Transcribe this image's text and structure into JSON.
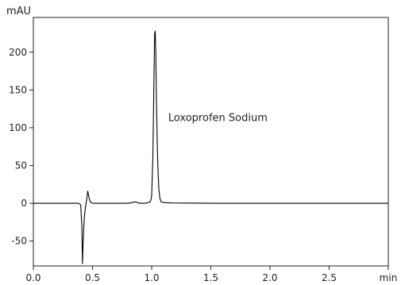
{
  "chart_data": {
    "type": "line",
    "ylabel": "mAU",
    "xlabel": "min",
    "xlim": [
      0.0,
      3.0
    ],
    "ylim": [
      -83,
      246
    ],
    "x_ticks": [
      "0.0",
      "0.5",
      "1.0",
      "1.5",
      "2.0",
      "2.5"
    ],
    "y_ticks": [
      "200",
      "150",
      "100",
      "50",
      "0",
      "-50"
    ],
    "annotations": [
      {
        "text": "Loxoprofen Sodium",
        "x": 1.14,
        "y": 109
      }
    ],
    "grid": false,
    "series": [
      {
        "x": [
          0.0,
          0.38,
          0.4,
          0.41,
          0.415,
          0.42,
          0.43,
          0.44,
          0.45,
          0.46,
          0.47,
          0.48,
          0.5,
          0.55,
          0.6,
          0.7,
          0.8,
          0.84,
          0.86,
          0.88,
          0.9,
          0.95,
          0.99,
          1.0,
          1.01,
          1.02,
          1.025,
          1.03,
          1.035,
          1.04,
          1.05,
          1.06,
          1.07,
          1.08,
          1.1,
          1.15,
          1.2,
          1.3,
          1.5,
          1.7,
          1.9,
          2.1,
          2.3,
          2.5,
          2.7,
          2.9,
          3.0
        ],
        "y": [
          0,
          0,
          -2,
          -30,
          -80,
          -55,
          -20,
          -5,
          4,
          16,
          8,
          2,
          0,
          0,
          0,
          0,
          0,
          1,
          2,
          1,
          0,
          0,
          2,
          10,
          60,
          170,
          225,
          228,
          200,
          140,
          60,
          20,
          6,
          2,
          1,
          0.5,
          0.3,
          0.2,
          0,
          0,
          0,
          0,
          0,
          0,
          0,
          0,
          0
        ]
      }
    ]
  }
}
